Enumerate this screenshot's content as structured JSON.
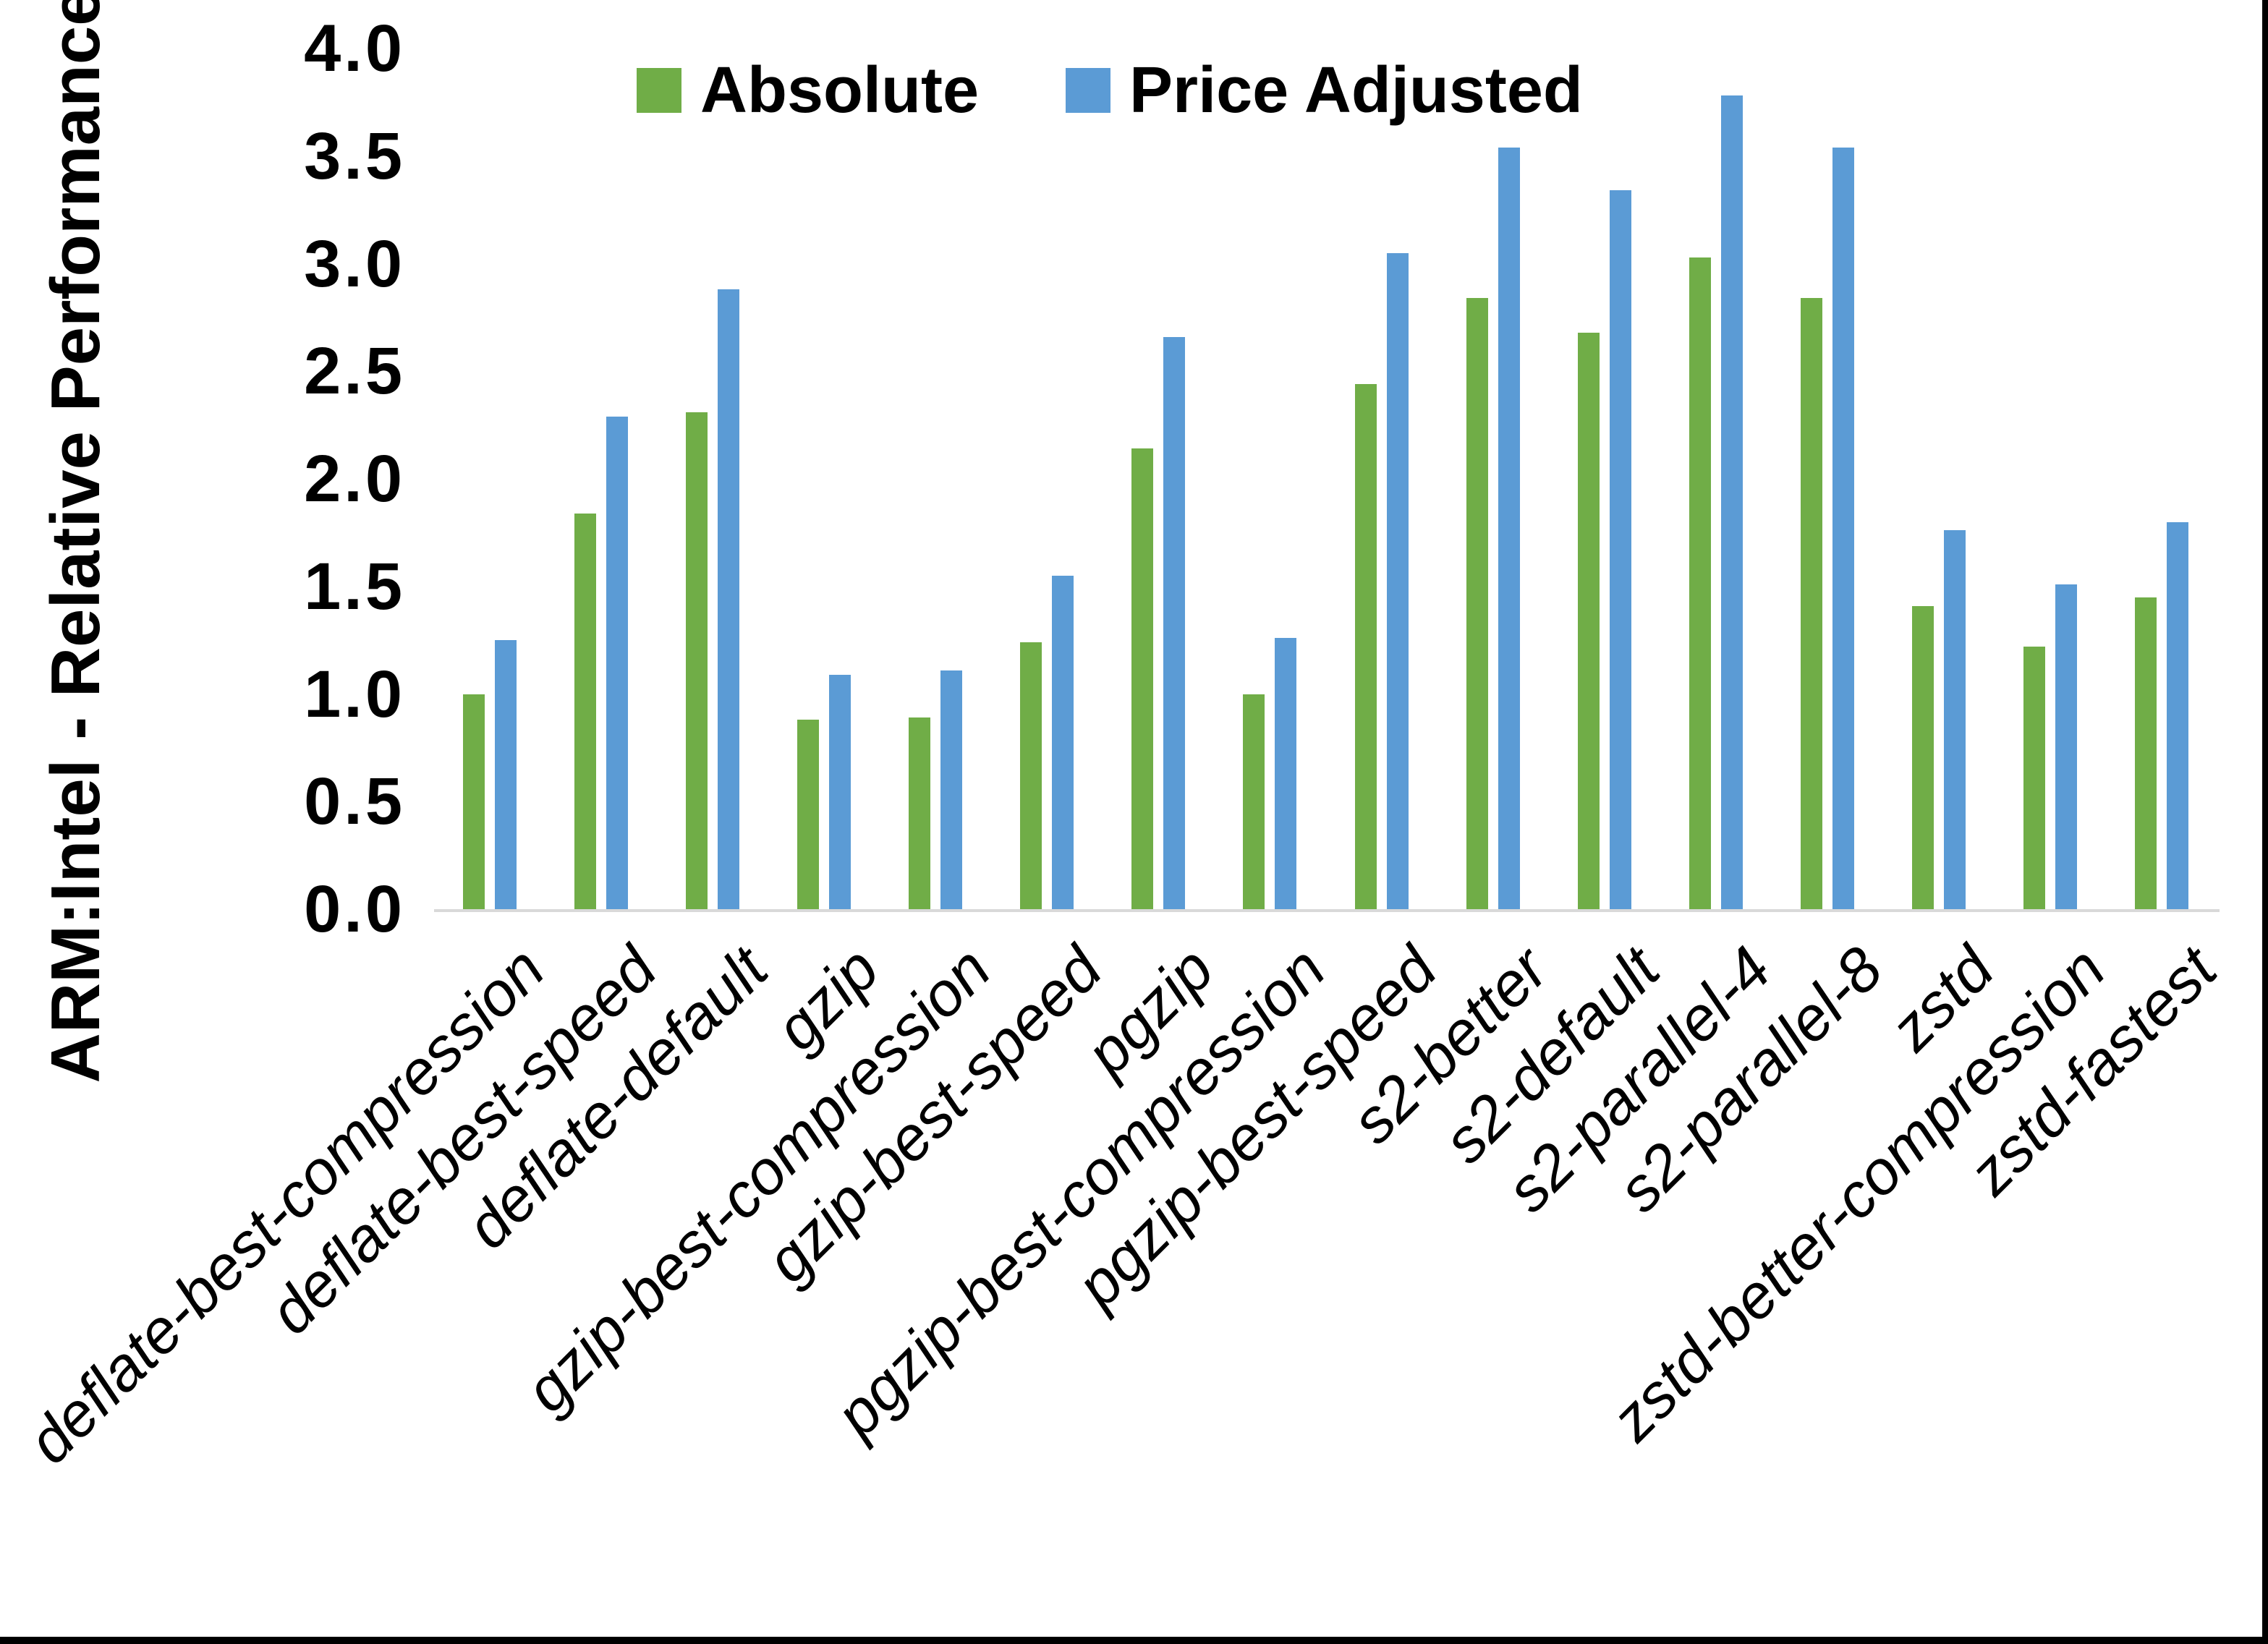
{
  "frame": {
    "background": "#ffffff",
    "right_edge_color": "#000000",
    "bottom_edge_color": "#000000"
  },
  "chart_data": {
    "type": "bar",
    "title": "",
    "xlabel": "",
    "ylabel": "ARM:Intel - Relative Performance",
    "ylim": [
      0,
      4.0
    ],
    "ytick_step": 0.5,
    "ytick_labels": [
      "0.0",
      "0.5",
      "1.0",
      "1.5",
      "2.0",
      "2.5",
      "3.0",
      "3.5",
      "4.0"
    ],
    "grid": false,
    "legend_position": "top-center",
    "axis_line_color": "#d9d9d9",
    "categories": [
      "deflate-best-compression",
      "deflate-best-speed",
      "deflate-default",
      "gzip",
      "gzip-best-compression",
      "gzip-best-speed",
      "pgzip",
      "pgzip-best-compression",
      "pgzip-best-speed",
      "s2-better",
      "s2-default",
      "s2-parallel-4",
      "s2-parallel-8",
      "zstd",
      "zstd-better-compression",
      "zstd-fastest"
    ],
    "series": [
      {
        "name": "Absolute",
        "color": "#70AD47",
        "values": [
          1.0,
          1.84,
          2.31,
          0.88,
          0.89,
          1.24,
          2.14,
          1.0,
          2.44,
          2.84,
          2.68,
          3.03,
          2.84,
          1.41,
          1.22,
          1.45
        ]
      },
      {
        "name": "Price Adjusted",
        "color": "#5B9BD5",
        "values": [
          1.25,
          2.29,
          2.88,
          1.09,
          1.11,
          1.55,
          2.66,
          1.26,
          3.05,
          3.54,
          3.34,
          3.78,
          3.54,
          1.76,
          1.51,
          1.8
        ]
      }
    ]
  }
}
